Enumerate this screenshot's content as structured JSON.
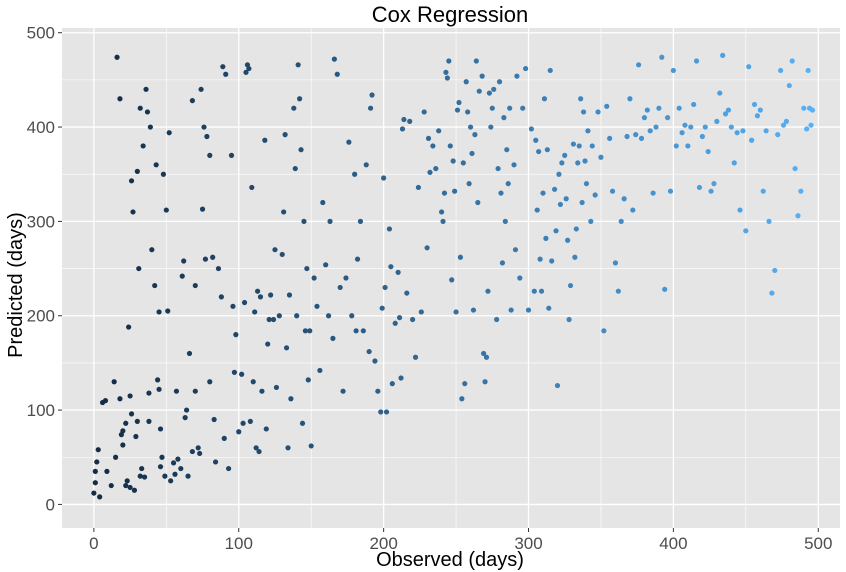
{
  "chart_data": {
    "type": "scatter",
    "title": "Cox Regression",
    "xlabel": "Observed (days)",
    "ylabel": "Predicted (days)",
    "xlim": [
      -22,
      515
    ],
    "ylim": [
      -25,
      505
    ],
    "xticks": [
      0,
      100,
      200,
      300,
      400,
      500
    ],
    "yticks": [
      0,
      100,
      200,
      300,
      400,
      500
    ],
    "grid": true,
    "legend": "none",
    "color_scale": {
      "low": "#132B43",
      "high": "#56B1F7",
      "mapped_to": "x"
    },
    "background_color": "#e5e5e5",
    "gridline_color": "#ffffff",
    "points": [
      [
        0,
        12
      ],
      [
        1,
        23
      ],
      [
        1,
        35
      ],
      [
        2,
        45
      ],
      [
        3,
        58
      ],
      [
        4,
        8
      ],
      [
        6,
        108
      ],
      [
        8,
        110
      ],
      [
        9,
        35
      ],
      [
        12,
        20
      ],
      [
        14,
        130
      ],
      [
        15,
        50
      ],
      [
        16,
        474
      ],
      [
        18,
        430
      ],
      [
        18,
        112
      ],
      [
        19,
        74
      ],
      [
        20,
        63
      ],
      [
        20,
        78
      ],
      [
        22,
        86
      ],
      [
        22,
        20
      ],
      [
        23,
        25
      ],
      [
        24,
        188
      ],
      [
        25,
        18
      ],
      [
        25,
        115
      ],
      [
        26,
        96
      ],
      [
        26,
        343
      ],
      [
        27,
        310
      ],
      [
        28,
        15
      ],
      [
        29,
        72
      ],
      [
        30,
        353
      ],
      [
        30,
        88
      ],
      [
        31,
        250
      ],
      [
        32,
        420
      ],
      [
        32,
        30
      ],
      [
        33,
        38
      ],
      [
        34,
        380
      ],
      [
        35,
        29
      ],
      [
        36,
        440
      ],
      [
        37,
        416
      ],
      [
        38,
        118
      ],
      [
        38,
        88
      ],
      [
        39,
        400
      ],
      [
        40,
        270
      ],
      [
        42,
        232
      ],
      [
        43,
        360
      ],
      [
        44,
        132
      ],
      [
        45,
        204
      ],
      [
        45,
        122
      ],
      [
        46,
        80
      ],
      [
        46,
        40
      ],
      [
        47,
        50
      ],
      [
        48,
        350
      ],
      [
        49,
        30
      ],
      [
        50,
        312
      ],
      [
        51,
        205
      ],
      [
        52,
        394
      ],
      [
        53,
        25
      ],
      [
        55,
        44
      ],
      [
        56,
        32
      ],
      [
        57,
        120
      ],
      [
        58,
        48
      ],
      [
        60,
        38
      ],
      [
        61,
        242
      ],
      [
        62,
        258
      ],
      [
        63,
        92
      ],
      [
        64,
        100
      ],
      [
        65,
        30
      ],
      [
        66,
        160
      ],
      [
        68,
        428
      ],
      [
        68,
        56
      ],
      [
        70,
        120
      ],
      [
        70,
        232
      ],
      [
        72,
        60
      ],
      [
        73,
        54
      ],
      [
        74,
        440
      ],
      [
        75,
        313
      ],
      [
        76,
        400
      ],
      [
        77,
        260
      ],
      [
        78,
        390
      ],
      [
        80,
        370
      ],
      [
        80,
        130
      ],
      [
        82,
        262
      ],
      [
        83,
        90
      ],
      [
        84,
        45
      ],
      [
        86,
        250
      ],
      [
        88,
        220
      ],
      [
        89,
        464
      ],
      [
        90,
        70
      ],
      [
        91,
        456
      ],
      [
        93,
        38
      ],
      [
        95,
        370
      ],
      [
        96,
        210
      ],
      [
        97,
        140
      ],
      [
        98,
        180
      ],
      [
        100,
        77
      ],
      [
        102,
        138
      ],
      [
        103,
        86
      ],
      [
        104,
        214
      ],
      [
        105,
        458
      ],
      [
        106,
        466
      ],
      [
        107,
        462
      ],
      [
        108,
        88
      ],
      [
        109,
        336
      ],
      [
        110,
        130
      ],
      [
        111,
        204
      ],
      [
        112,
        60
      ],
      [
        113,
        226
      ],
      [
        114,
        56
      ],
      [
        115,
        220
      ],
      [
        116,
        120
      ],
      [
        118,
        386
      ],
      [
        119,
        80
      ],
      [
        120,
        170
      ],
      [
        121,
        196
      ],
      [
        122,
        222
      ],
      [
        124,
        196
      ],
      [
        125,
        270
      ],
      [
        126,
        124
      ],
      [
        128,
        200
      ],
      [
        130,
        265
      ],
      [
        131,
        310
      ],
      [
        132,
        392
      ],
      [
        133,
        166
      ],
      [
        134,
        60
      ],
      [
        135,
        222
      ],
      [
        136,
        112
      ],
      [
        138,
        420
      ],
      [
        139,
        356
      ],
      [
        140,
        200
      ],
      [
        141,
        466
      ],
      [
        142,
        430
      ],
      [
        143,
        376
      ],
      [
        144,
        86
      ],
      [
        145,
        300
      ],
      [
        146,
        184
      ],
      [
        147,
        250
      ],
      [
        148,
        132
      ],
      [
        149,
        184
      ],
      [
        150,
        62
      ],
      [
        152,
        240
      ],
      [
        154,
        210
      ],
      [
        156,
        142
      ],
      [
        158,
        320
      ],
      [
        160,
        254
      ],
      [
        162,
        200
      ],
      [
        163,
        300
      ],
      [
        165,
        176
      ],
      [
        166,
        472
      ],
      [
        168,
        456
      ],
      [
        170,
        230
      ],
      [
        172,
        120
      ],
      [
        174,
        240
      ],
      [
        176,
        384
      ],
      [
        178,
        200
      ],
      [
        180,
        350
      ],
      [
        181,
        184
      ],
      [
        182,
        260
      ],
      [
        184,
        300
      ],
      [
        186,
        184
      ],
      [
        188,
        360
      ],
      [
        190,
        162
      ],
      [
        191,
        420
      ],
      [
        192,
        434
      ],
      [
        194,
        152
      ],
      [
        196,
        120
      ],
      [
        198,
        98
      ],
      [
        199,
        208
      ],
      [
        200,
        346
      ],
      [
        201,
        230
      ],
      [
        202,
        98
      ],
      [
        204,
        292
      ],
      [
        205,
        252
      ],
      [
        206,
        128
      ],
      [
        208,
        192
      ],
      [
        210,
        246
      ],
      [
        211,
        198
      ],
      [
        212,
        134
      ],
      [
        213,
        398
      ],
      [
        214,
        408
      ],
      [
        216,
        224
      ],
      [
        218,
        406
      ],
      [
        220,
        196
      ],
      [
        222,
        156
      ],
      [
        224,
        336
      ],
      [
        226,
        204
      ],
      [
        228,
        416
      ],
      [
        230,
        272
      ],
      [
        231,
        388
      ],
      [
        232,
        352
      ],
      [
        234,
        380
      ],
      [
        236,
        356
      ],
      [
        238,
        396
      ],
      [
        240,
        310
      ],
      [
        241,
        300
      ],
      [
        242,
        330
      ],
      [
        243,
        458
      ],
      [
        244,
        452
      ],
      [
        245,
        470
      ],
      [
        246,
        380
      ],
      [
        247,
        238
      ],
      [
        248,
        364
      ],
      [
        249,
        332
      ],
      [
        250,
        204
      ],
      [
        251,
        418
      ],
      [
        252,
        426
      ],
      [
        253,
        262
      ],
      [
        254,
        112
      ],
      [
        255,
        362
      ],
      [
        256,
        128
      ],
      [
        257,
        448
      ],
      [
        258,
        416
      ],
      [
        259,
        340
      ],
      [
        260,
        400
      ],
      [
        261,
        372
      ],
      [
        262,
        206
      ],
      [
        263,
        392
      ],
      [
        264,
        470
      ],
      [
        265,
        320
      ],
      [
        266,
        438
      ],
      [
        268,
        454
      ],
      [
        269,
        160
      ],
      [
        270,
        130
      ],
      [
        271,
        156
      ],
      [
        272,
        226
      ],
      [
        273,
        436
      ],
      [
        274,
        400
      ],
      [
        275,
        420
      ],
      [
        276,
        440
      ],
      [
        278,
        196
      ],
      [
        279,
        356
      ],
      [
        280,
        448
      ],
      [
        281,
        330
      ],
      [
        282,
        256
      ],
      [
        283,
        410
      ],
      [
        284,
        300
      ],
      [
        285,
        376
      ],
      [
        286,
        340
      ],
      [
        287,
        420
      ],
      [
        288,
        206
      ],
      [
        290,
        360
      ],
      [
        291,
        270
      ],
      [
        292,
        454
      ],
      [
        294,
        240
      ],
      [
        296,
        420
      ],
      [
        298,
        462
      ],
      [
        300,
        206
      ],
      [
        302,
        398
      ],
      [
        304,
        226
      ],
      [
        305,
        386
      ],
      [
        306,
        312
      ],
      [
        307,
        374
      ],
      [
        308,
        260
      ],
      [
        309,
        226
      ],
      [
        310,
        330
      ],
      [
        311,
        430
      ],
      [
        312,
        282
      ],
      [
        313,
        376
      ],
      [
        314,
        208
      ],
      [
        315,
        460
      ],
      [
        316,
        258
      ],
      [
        318,
        334
      ],
      [
        319,
        290
      ],
      [
        320,
        126
      ],
      [
        321,
        350
      ],
      [
        322,
        318
      ],
      [
        323,
        362
      ],
      [
        325,
        370
      ],
      [
        326,
        324
      ],
      [
        327,
        280
      ],
      [
        328,
        196
      ],
      [
        329,
        232
      ],
      [
        331,
        382
      ],
      [
        332,
        262
      ],
      [
        333,
        292
      ],
      [
        334,
        362
      ],
      [
        335,
        380
      ],
      [
        336,
        430
      ],
      [
        337,
        320
      ],
      [
        338,
        416
      ],
      [
        339,
        364
      ],
      [
        340,
        340
      ],
      [
        341,
        396
      ],
      [
        343,
        300
      ],
      [
        344,
        380
      ],
      [
        346,
        328
      ],
      [
        348,
        416
      ],
      [
        350,
        368
      ],
      [
        352,
        184
      ],
      [
        354,
        422
      ],
      [
        356,
        388
      ],
      [
        358,
        332
      ],
      [
        360,
        256
      ],
      [
        362,
        226
      ],
      [
        364,
        300
      ],
      [
        366,
        324
      ],
      [
        368,
        390
      ],
      [
        370,
        430
      ],
      [
        372,
        312
      ],
      [
        374,
        392
      ],
      [
        376,
        466
      ],
      [
        378,
        388
      ],
      [
        380,
        410
      ],
      [
        382,
        418
      ],
      [
        384,
        396
      ],
      [
        386,
        330
      ],
      [
        388,
        400
      ],
      [
        390,
        420
      ],
      [
        392,
        474
      ],
      [
        394,
        228
      ],
      [
        396,
        410
      ],
      [
        398,
        332
      ],
      [
        400,
        460
      ],
      [
        402,
        380
      ],
      [
        404,
        420
      ],
      [
        406,
        394
      ],
      [
        408,
        402
      ],
      [
        410,
        380
      ],
      [
        412,
        400
      ],
      [
        414,
        424
      ],
      [
        416,
        470
      ],
      [
        418,
        336
      ],
      [
        420,
        390
      ],
      [
        422,
        400
      ],
      [
        424,
        374
      ],
      [
        426,
        332
      ],
      [
        428,
        340
      ],
      [
        430,
        406
      ],
      [
        432,
        436
      ],
      [
        434,
        476
      ],
      [
        436,
        414
      ],
      [
        438,
        418
      ],
      [
        440,
        400
      ],
      [
        442,
        362
      ],
      [
        444,
        394
      ],
      [
        446,
        312
      ],
      [
        448,
        396
      ],
      [
        450,
        290
      ],
      [
        452,
        464
      ],
      [
        454,
        386
      ],
      [
        456,
        424
      ],
      [
        458,
        412
      ],
      [
        460,
        418
      ],
      [
        462,
        332
      ],
      [
        464,
        396
      ],
      [
        466,
        300
      ],
      [
        468,
        224
      ],
      [
        470,
        248
      ],
      [
        472,
        392
      ],
      [
        474,
        460
      ],
      [
        476,
        402
      ],
      [
        478,
        406
      ],
      [
        480,
        444
      ],
      [
        482,
        470
      ],
      [
        484,
        356
      ],
      [
        486,
        306
      ],
      [
        488,
        332
      ],
      [
        490,
        420
      ],
      [
        492,
        398
      ],
      [
        493,
        460
      ],
      [
        494,
        420
      ],
      [
        495,
        402
      ],
      [
        496,
        418
      ]
    ]
  }
}
